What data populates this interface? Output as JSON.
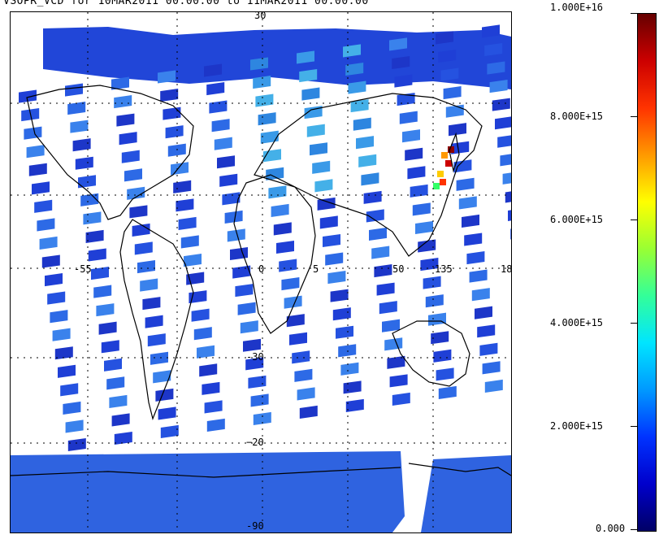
{
  "title": "VSOPR_VCD for 10MAR2011 00:00:00 to 11MAR2011 00:00:00",
  "colorbar": {
    "labels": [
      "1.000E+16",
      "8.000E+15",
      "6.000E+15",
      "4.000E+15",
      "2.000E+15",
      "0.000"
    ],
    "values": [
      1e+16,
      8000000000000000.0,
      6000000000000000.0,
      4000000000000000.0,
      2000000000000000.0,
      0
    ],
    "colors": [
      "#000066",
      "#0000cc",
      "#0033ff",
      "#0099ff",
      "#00e5ff",
      "#33ff99",
      "#99ff33",
      "#ffff00",
      "#ff9900",
      "#ff3300",
      "#cc0000",
      "#660000"
    ]
  },
  "map": {
    "lat_labels": [
      "30",
      "-55",
      "0",
      "35",
      "-30",
      "-90"
    ],
    "lon_labels": [
      "-55",
      "0",
      "5",
      "50",
      "135",
      "18"
    ],
    "gridlines": true
  }
}
